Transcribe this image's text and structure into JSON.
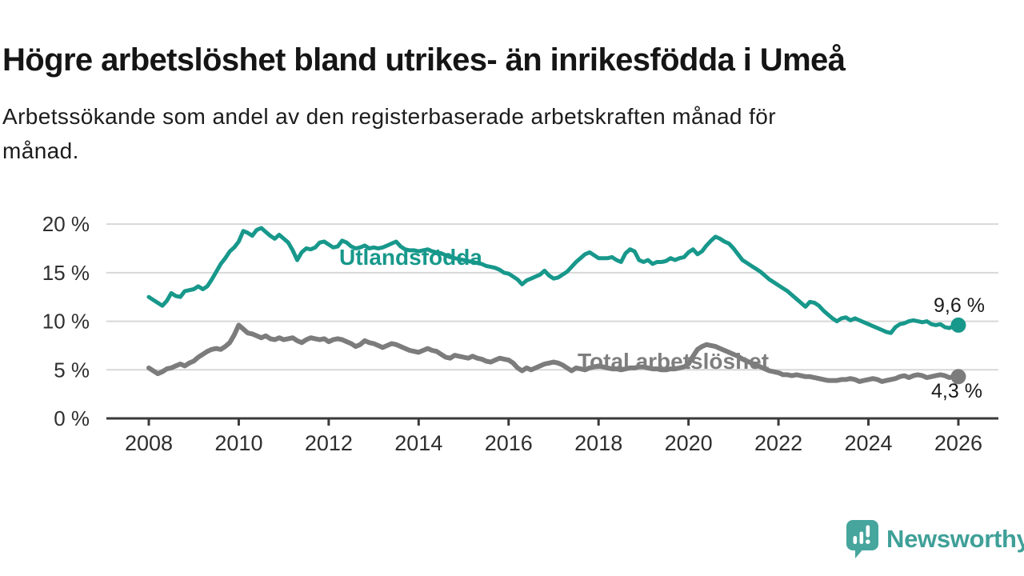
{
  "header": {
    "title": "Högre arbetslöshet bland utrikes- än inrikesfödda i Umeå",
    "subtitle_lines": [
      "Arbetssökande som andel av den registerbaserade arbetskraften månad för",
      "månad."
    ]
  },
  "chart_data": {
    "type": "line",
    "title": "Högre arbetslöshet bland utrikes- än inrikesfödda i Umeå",
    "subtitle": "Arbetssökande som andel av den registerbaserade arbetskraften månad för månad.",
    "grid": true,
    "x_axis": {
      "ticks": [
        2008,
        2010,
        2012,
        2014,
        2016,
        2018,
        2020,
        2022,
        2024,
        2026
      ],
      "tick_labels": [
        "2008",
        "2010",
        "2012",
        "2014",
        "2016",
        "2018",
        "2020",
        "2022",
        "2024",
        "2026"
      ],
      "min": 2007.05,
      "max": 2026.9
    },
    "y_axis": {
      "ticks": [
        0,
        5,
        10,
        15,
        20
      ],
      "tick_labels": [
        "0 %",
        "5 %",
        "10 %",
        "15 %",
        "20 %"
      ],
      "min": 0,
      "max": 20.8,
      "unit": "%"
    },
    "series": [
      {
        "name": "Utlandsfödda",
        "color": "#17988B",
        "line_width": 5,
        "end_label": "9,6 %",
        "end_value": 9.6,
        "x_start": 2008.0,
        "x_step": 0.1,
        "values": [
          12.5,
          12.2,
          11.9,
          11.6,
          12.1,
          12.9,
          12.6,
          12.5,
          13.1,
          13.2,
          13.3,
          13.6,
          13.3,
          13.6,
          14.3,
          15.1,
          15.9,
          16.5,
          17.2,
          17.6,
          18.2,
          19.3,
          19.1,
          18.8,
          19.4,
          19.6,
          19.2,
          18.8,
          18.5,
          18.9,
          18.5,
          18.1,
          17.3,
          16.3,
          17.1,
          17.5,
          17.4,
          17.6,
          18.1,
          18.2,
          17.9,
          17.6,
          17.7,
          18.3,
          18.1,
          17.7,
          17.5,
          17.6,
          17.8,
          17.5,
          17.6,
          17.5,
          17.6,
          17.8,
          18.0,
          18.2,
          17.7,
          17.4,
          17.3,
          17.3,
          17.2,
          17.3,
          17.4,
          17.2,
          17.1,
          17.0,
          16.8,
          16.6,
          16.5,
          16.4,
          16.3,
          16.2,
          16.1,
          16.0,
          15.9,
          15.7,
          15.6,
          15.5,
          15.3,
          15.0,
          14.9,
          14.6,
          14.3,
          13.8,
          14.2,
          14.4,
          14.6,
          14.8,
          15.2,
          14.7,
          14.4,
          14.5,
          14.8,
          15.1,
          15.6,
          16.1,
          16.5,
          16.9,
          17.1,
          16.8,
          16.5,
          16.5,
          16.5,
          16.6,
          16.3,
          16.1,
          17.0,
          17.4,
          17.2,
          16.3,
          16.1,
          16.3,
          15.9,
          16.1,
          16.1,
          16.2,
          16.5,
          16.3,
          16.5,
          16.6,
          17.1,
          17.4,
          16.9,
          17.2,
          17.8,
          18.3,
          18.7,
          18.5,
          18.2,
          18.0,
          17.5,
          16.9,
          16.3,
          16.0,
          15.7,
          15.4,
          15.1,
          14.7,
          14.3,
          14.0,
          13.7,
          13.4,
          13.1,
          12.7,
          12.3,
          11.9,
          11.5,
          12.0,
          11.9,
          11.6,
          11.1,
          10.7,
          10.3,
          10.0,
          10.3,
          10.4,
          10.1,
          10.3,
          10.1,
          9.9,
          9.7,
          9.5,
          9.3,
          9.1,
          8.9,
          8.8,
          9.4,
          9.7,
          9.8,
          10.0,
          10.1,
          10.0,
          9.9,
          10.0,
          9.7,
          9.6,
          9.7,
          9.4,
          9.3,
          9.5,
          9.6
        ]
      },
      {
        "name": "Total arbetslöshet",
        "color": "#7C7C7C",
        "line_width": 6,
        "end_label": "4,3 %",
        "end_value": 4.3,
        "x_start": 2008.0,
        "x_step": 0.1,
        "values": [
          5.2,
          4.9,
          4.6,
          4.8,
          5.1,
          5.2,
          5.4,
          5.6,
          5.4,
          5.7,
          5.9,
          6.3,
          6.6,
          6.9,
          7.1,
          7.2,
          7.1,
          7.4,
          7.8,
          8.6,
          9.6,
          9.2,
          8.8,
          8.7,
          8.5,
          8.3,
          8.5,
          8.2,
          8.1,
          8.3,
          8.1,
          8.2,
          8.3,
          8.0,
          7.8,
          8.1,
          8.3,
          8.2,
          8.1,
          8.2,
          7.9,
          8.1,
          8.2,
          8.1,
          7.9,
          7.7,
          7.4,
          7.6,
          8.0,
          7.8,
          7.7,
          7.5,
          7.3,
          7.5,
          7.7,
          7.6,
          7.4,
          7.2,
          7.0,
          6.9,
          6.8,
          7.0,
          7.2,
          7.0,
          6.9,
          6.6,
          6.3,
          6.2,
          6.5,
          6.4,
          6.3,
          6.2,
          6.4,
          6.2,
          6.1,
          5.9,
          5.8,
          6.0,
          6.2,
          6.1,
          6.0,
          5.7,
          5.2,
          4.9,
          5.2,
          5.0,
          5.2,
          5.4,
          5.6,
          5.7,
          5.8,
          5.7,
          5.5,
          5.2,
          4.9,
          5.2,
          5.1,
          5.0,
          5.2,
          5.3,
          5.4,
          5.3,
          5.2,
          5.1,
          5.1,
          5.0,
          5.1,
          5.2,
          5.2,
          5.3,
          5.3,
          5.2,
          5.1,
          5.1,
          5.0,
          5.0,
          5.1,
          5.1,
          5.2,
          5.3,
          5.6,
          6.4,
          7.1,
          7.4,
          7.6,
          7.5,
          7.4,
          7.2,
          7.0,
          6.8,
          6.6,
          6.4,
          6.1,
          5.9,
          5.7,
          5.5,
          5.3,
          5.1,
          4.9,
          4.8,
          4.7,
          4.5,
          4.5,
          4.4,
          4.5,
          4.4,
          4.3,
          4.3,
          4.2,
          4.1,
          4.0,
          3.9,
          3.9,
          3.9,
          4.0,
          4.0,
          4.1,
          4.0,
          3.8,
          3.9,
          4.0,
          4.1,
          4.0,
          3.8,
          3.9,
          4.0,
          4.1,
          4.3,
          4.4,
          4.2,
          4.4,
          4.5,
          4.4,
          4.2,
          4.3,
          4.4,
          4.5,
          4.4,
          4.2,
          4.3,
          4.3
        ]
      }
    ]
  },
  "footer": {
    "brand": "Newsworthy"
  }
}
